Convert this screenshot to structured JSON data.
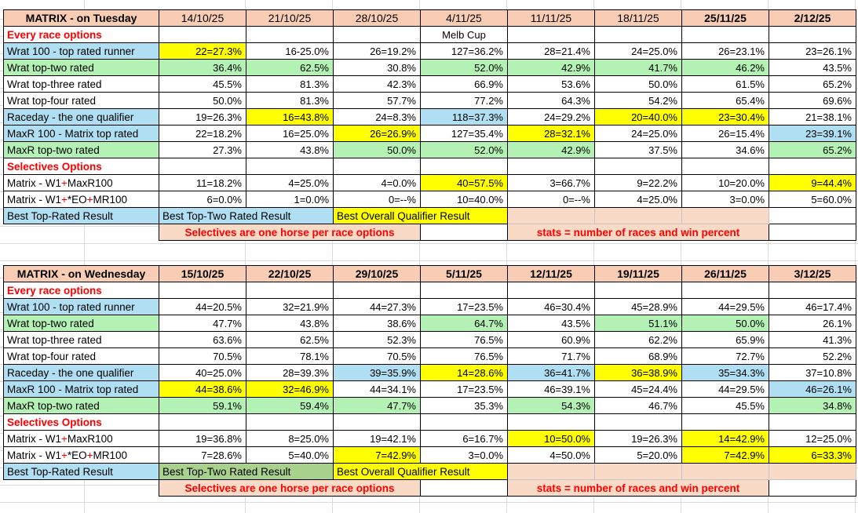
{
  "colors": {
    "header_peach": "#f8cdb3",
    "note_peach": "#f9dac6",
    "highlight_yellow": "#ffff00",
    "highlight_blue": "#b0def2",
    "highlight_green": "#b4f1b4",
    "best_green": "#a9d18e",
    "accent_red": "#ff0000",
    "grid_border": "#000000"
  },
  "tables": [
    {
      "title": "MATRIX - on Tuesday",
      "dates": [
        {
          "label": "14/10/25",
          "bold": false
        },
        {
          "label": "21/10/25",
          "bold": false
        },
        {
          "label": "28/10/25",
          "bold": false
        },
        {
          "label": "4/11/25",
          "bold": false
        },
        {
          "label": "11/11/25",
          "bold": false
        },
        {
          "label": "18/11/25",
          "bold": false
        },
        {
          "label": "25/11/25",
          "bold": true
        },
        {
          "label": "2/12/25",
          "bold": true
        }
      ],
      "rows": [
        {
          "type": "section",
          "label": "Every race options",
          "note": {
            "col": 3,
            "text": "Melb Cup"
          }
        },
        {
          "type": "data",
          "label": "Wrat 100 - top rated runner",
          "label_bg": "blue",
          "cells": [
            {
              "v": "22=27.3%",
              "bg": "yellow"
            },
            {
              "v": "16-25.0%"
            },
            {
              "v": "26=19.2%"
            },
            {
              "v": "127=36.2%"
            },
            {
              "v": "28=21.4%"
            },
            {
              "v": "24=25.0%"
            },
            {
              "v": "26=23.1%"
            },
            {
              "v": "23=26.1%"
            }
          ]
        },
        {
          "type": "data",
          "label": "Wrat top-two rated",
          "label_bg": "green",
          "cells": [
            {
              "v": "36.4%",
              "bg": "green"
            },
            {
              "v": "62.5%",
              "bg": "green"
            },
            {
              "v": "30.8%"
            },
            {
              "v": "52.0%",
              "bg": "green"
            },
            {
              "v": "42.9%",
              "bg": "green"
            },
            {
              "v": "41.7%",
              "bg": "green"
            },
            {
              "v": "46.2%",
              "bg": "green"
            },
            {
              "v": "43.5%"
            }
          ]
        },
        {
          "type": "data",
          "label": "Wrat top-three rated",
          "cells": [
            {
              "v": "45.5%"
            },
            {
              "v": "81.3%"
            },
            {
              "v": "42.3%"
            },
            {
              "v": "66.9%"
            },
            {
              "v": "53.6%"
            },
            {
              "v": "50.0%"
            },
            {
              "v": "61.5%"
            },
            {
              "v": "65.2%"
            }
          ]
        },
        {
          "type": "data",
          "label": "Wrat top-four rated",
          "cells": [
            {
              "v": "50.0%"
            },
            {
              "v": "81.3%"
            },
            {
              "v": "57.7%"
            },
            {
              "v": "77.2%"
            },
            {
              "v": "64.3%"
            },
            {
              "v": "54.2%"
            },
            {
              "v": "65.4%"
            },
            {
              "v": "69.6%"
            }
          ]
        },
        {
          "type": "data",
          "label": "Raceday - the one qualifier",
          "label_bg": "blue",
          "cells": [
            {
              "v": "19=26.3%"
            },
            {
              "v": "16=43.8%",
              "bg": "yellow"
            },
            {
              "v": "24=8.3%"
            },
            {
              "v": "118=37.3%",
              "bg": "blue"
            },
            {
              "v": "24=29.2%"
            },
            {
              "v": "20=40.0%",
              "bg": "yellow"
            },
            {
              "v": "23=30.4%",
              "bg": "yellow"
            },
            {
              "v": "21=38.1%"
            }
          ]
        },
        {
          "type": "data",
          "label": "MaxR 100 - Matrix top rated",
          "label_bg": "blue",
          "cells": [
            {
              "v": "22=18.2%"
            },
            {
              "v": "16=25.0%"
            },
            {
              "v": "26=26.9%",
              "bg": "yellow"
            },
            {
              "v": "127=35.4%"
            },
            {
              "v": "28=32.1%",
              "bg": "yellow"
            },
            {
              "v": "24=25.0%"
            },
            {
              "v": "26=15.4%"
            },
            {
              "v": "23=39.1%",
              "bg": "blue"
            }
          ]
        },
        {
          "type": "data",
          "label": "MaxR top-two rated",
          "label_bg": "green",
          "cells": [
            {
              "v": "27.3%"
            },
            {
              "v": "43.8%"
            },
            {
              "v": "50.0%",
              "bg": "green"
            },
            {
              "v": "52.0%",
              "bg": "green"
            },
            {
              "v": "42.9%",
              "bg": "green"
            },
            {
              "v": "37.5%"
            },
            {
              "v": "34.6%"
            },
            {
              "v": "65.2%",
              "bg": "green"
            }
          ]
        },
        {
          "type": "section",
          "label": "Selectives Options"
        },
        {
          "type": "data",
          "label_parts": [
            {
              "t": "Matrix - W1"
            },
            {
              "t": "+",
              "red": true
            },
            {
              "t": "MaxR100"
            }
          ],
          "cells": [
            {
              "v": "11=18.2%"
            },
            {
              "v": "4=25.0%"
            },
            {
              "v": "4=0.0%"
            },
            {
              "v": "40=57.5%",
              "bg": "yellow"
            },
            {
              "v": "3=66.7%"
            },
            {
              "v": "9=22.2%"
            },
            {
              "v": "10=20.0%"
            },
            {
              "v": "9=44.4%",
              "bg": "yellow"
            }
          ]
        },
        {
          "type": "data",
          "label_parts": [
            {
              "t": "Matrix - W1"
            },
            {
              "t": "+",
              "red": true
            },
            {
              "t": "*EO"
            },
            {
              "t": "+",
              "red": true
            },
            {
              "t": "MR100"
            }
          ],
          "cells": [
            {
              "v": "6=0.0%"
            },
            {
              "v": "1=0.0%"
            },
            {
              "v": "0=--%"
            },
            {
              "v": "10=40.0%"
            },
            {
              "v": "0=--%"
            },
            {
              "v": "4=25.0%"
            },
            {
              "v": "3=0.0%"
            },
            {
              "v": "5=60.0%"
            }
          ]
        },
        {
          "type": "best",
          "label": "Best Top-Rated Result",
          "label_bg": "blue",
          "cells": [
            {
              "v": "Best Top-Two Rated Result",
              "bg": "blue",
              "span": 2
            },
            {
              "v": "Best Overall Qualifier Result",
              "bg": "yellow",
              "span": 2
            },
            {
              "bg": "peachlight"
            },
            {
              "bg": "peachlight"
            },
            {
              "bg": "peachlight"
            },
            {
              "blank": true
            }
          ]
        },
        {
          "type": "note",
          "cells": [
            {
              "v": "Selectives are one horse per race options",
              "span": 3,
              "band": true
            },
            {
              "blank": true
            },
            {
              "v": "stats = number of races and win percent",
              "span": 3,
              "band": true
            },
            {
              "blank": true
            }
          ]
        }
      ]
    },
    {
      "title": "MATRIX - on Wednesday",
      "dates": [
        {
          "label": "15/10/25",
          "bold": true
        },
        {
          "label": "22/10/25",
          "bold": true
        },
        {
          "label": "29/10/25",
          "bold": true
        },
        {
          "label": "5/11/25",
          "bold": true
        },
        {
          "label": "12/11/25",
          "bold": true
        },
        {
          "label": "19/11/25",
          "bold": true
        },
        {
          "label": "26/11/25",
          "bold": true
        },
        {
          "label": "3/12/25",
          "bold": true
        }
      ],
      "rows": [
        {
          "type": "section",
          "label": "Every race options"
        },
        {
          "type": "data",
          "label": "Wrat 100 - top rated runner",
          "label_bg": "blue",
          "cells": [
            {
              "v": "44=20.5%"
            },
            {
              "v": "32=21.9%"
            },
            {
              "v": "44=27.3%"
            },
            {
              "v": "17=23.5%"
            },
            {
              "v": "46=30.4%"
            },
            {
              "v": "45=28.9%"
            },
            {
              "v": "44=29.5%"
            },
            {
              "v": "46=17.4%"
            }
          ]
        },
        {
          "type": "data",
          "label": "Wrat top-two rated",
          "label_bg": "green",
          "cells": [
            {
              "v": "47.7%"
            },
            {
              "v": "43.8%"
            },
            {
              "v": "38.6%"
            },
            {
              "v": "64.7%",
              "bg": "green"
            },
            {
              "v": "43.5%"
            },
            {
              "v": "51.1%",
              "bg": "green"
            },
            {
              "v": "50.0%",
              "bg": "green"
            },
            {
              "v": "26.1%"
            }
          ]
        },
        {
          "type": "data",
          "label": "Wrat top-three rated",
          "cells": [
            {
              "v": "63.6%"
            },
            {
              "v": "62.5%"
            },
            {
              "v": "52.3%"
            },
            {
              "v": "76.5%"
            },
            {
              "v": "60.9%"
            },
            {
              "v": "62.2%"
            },
            {
              "v": "65.9%"
            },
            {
              "v": "41.3%"
            }
          ]
        },
        {
          "type": "data",
          "label": "Wrat top-four rated",
          "cells": [
            {
              "v": "70.5%"
            },
            {
              "v": "78.1%"
            },
            {
              "v": "70.5%"
            },
            {
              "v": "76.5%"
            },
            {
              "v": "71.7%"
            },
            {
              "v": "68.9%"
            },
            {
              "v": "72.7%"
            },
            {
              "v": "52.2%"
            }
          ]
        },
        {
          "type": "data",
          "label": "Raceday - the one qualifier",
          "label_bg": "blue",
          "cells": [
            {
              "v": "40=25.0%"
            },
            {
              "v": "28=39.3%"
            },
            {
              "v": "39=35.9%",
              "bg": "blue"
            },
            {
              "v": "14=28.6%",
              "bg": "yellow"
            },
            {
              "v": "36=41.7%",
              "bg": "blue"
            },
            {
              "v": "36=38.9%",
              "bg": "yellow"
            },
            {
              "v": "35=34.3%",
              "bg": "blue"
            },
            {
              "v": "37=10.8%"
            }
          ]
        },
        {
          "type": "data",
          "label": "MaxR 100 - Matrix top rated",
          "label_bg": "blue",
          "cells": [
            {
              "v": "44=38.6%",
              "bg": "yellow"
            },
            {
              "v": "32=46.9%",
              "bg": "yellow"
            },
            {
              "v": "44=34.1%"
            },
            {
              "v": "17=23.5%"
            },
            {
              "v": "46=39.1%"
            },
            {
              "v": "45=24.4%"
            },
            {
              "v": "44=29.5%"
            },
            {
              "v": "46=26.1%",
              "bg": "blue"
            }
          ]
        },
        {
          "type": "data",
          "label": "MaxR top-two rated",
          "label_bg": "green",
          "cells": [
            {
              "v": "59.1%",
              "bg": "green"
            },
            {
              "v": "59.4%",
              "bg": "green"
            },
            {
              "v": "47.7%",
              "bg": "green"
            },
            {
              "v": "35.3%"
            },
            {
              "v": "54.3%",
              "bg": "green"
            },
            {
              "v": "46.7%"
            },
            {
              "v": "45.5%"
            },
            {
              "v": "34.8%",
              "bg": "green"
            }
          ]
        },
        {
          "type": "section",
          "label": "Selectives Options"
        },
        {
          "type": "data",
          "label_parts": [
            {
              "t": "Matrix - W1"
            },
            {
              "t": "+",
              "red": true
            },
            {
              "t": "MaxR100"
            }
          ],
          "cells": [
            {
              "v": "19=36.8%"
            },
            {
              "v": "8=25.0%"
            },
            {
              "v": "19=42.1%"
            },
            {
              "v": "6=16.7%"
            },
            {
              "v": "10=50.0%",
              "bg": "yellow"
            },
            {
              "v": "19=26.3%"
            },
            {
              "v": "14=42.9%",
              "bg": "yellow"
            },
            {
              "v": "12=25.0%"
            }
          ]
        },
        {
          "type": "data",
          "label_parts": [
            {
              "t": "Matrix - W1"
            },
            {
              "t": "+",
              "red": true
            },
            {
              "t": "*EO"
            },
            {
              "t": "+",
              "red": true
            },
            {
              "t": "MR100"
            }
          ],
          "cells": [
            {
              "v": "7=28.6%"
            },
            {
              "v": "5=40.0%"
            },
            {
              "v": "7=42.9%",
              "bg": "yellow"
            },
            {
              "v": "3=0.0%"
            },
            {
              "v": "4=50.0%"
            },
            {
              "v": "5=20.0%"
            },
            {
              "v": "7=42.9%",
              "bg": "yellow"
            },
            {
              "v": "6=33.3%",
              "bg": "yellow"
            }
          ]
        },
        {
          "type": "best",
          "label": "Best Top-Rated Result",
          "label_bg": "blue",
          "cells": [
            {
              "v": "Best Top-Two Rated Result",
              "bg": "greenmed",
              "span": 2
            },
            {
              "v": "Best Overall Qualifier Result",
              "bg": "yellow",
              "span": 2
            },
            {
              "bg": "peachlight"
            },
            {
              "bg": "peachlight"
            },
            {
              "bg": "peachlight"
            },
            {
              "bg": "peachlight"
            }
          ]
        },
        {
          "type": "note",
          "cells": [
            {
              "v": "Selectives are one horse per race options",
              "span": 3,
              "band": true
            },
            {
              "blank": true
            },
            {
              "v": "stats = number of races and win percent",
              "span": 3,
              "band": true
            },
            {
              "blank": true
            }
          ]
        }
      ]
    }
  ]
}
